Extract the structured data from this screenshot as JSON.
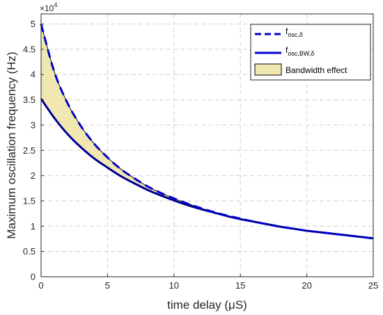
{
  "chart_data": {
    "type": "line",
    "xlabel": "time delay (μS)",
    "ylabel": "Maximum oscillation frequency (Hz)",
    "xlim": [
      0,
      25
    ],
    "ylim": [
      0,
      5.2
    ],
    "y_multiplier_label": "×10",
    "y_multiplier_exponent": "4",
    "x_ticks": [
      "0",
      "5",
      "10",
      "15",
      "20",
      "25"
    ],
    "y_ticks": [
      "0",
      "0.5",
      "1",
      "1.5",
      "2",
      "2.5",
      "3",
      "3.5",
      "4",
      "4.5",
      "5"
    ],
    "grid": true,
    "legend_position": "top-right",
    "x": [
      0,
      1,
      2,
      3,
      4,
      5,
      6,
      7,
      8,
      9,
      10,
      11,
      12,
      13,
      14,
      15,
      16,
      17,
      18,
      19,
      20,
      21,
      22,
      23,
      24,
      25
    ],
    "series": [
      {
        "name": "f",
        "sub": "osc,δ",
        "style": "dashed",
        "color": "#0000cc",
        "values": [
          5.0,
          4.05,
          3.43,
          2.98,
          2.63,
          2.36,
          2.13,
          1.95,
          1.79,
          1.66,
          1.55,
          1.45,
          1.36,
          1.28,
          1.21,
          1.15,
          1.09,
          1.04,
          0.99,
          0.95,
          0.91,
          0.88,
          0.85,
          0.82,
          0.79,
          0.76
        ]
      },
      {
        "name": "f",
        "sub": "osc,BW,δ",
        "style": "solid",
        "color": "#0000cc",
        "values": [
          3.52,
          3.14,
          2.82,
          2.56,
          2.34,
          2.16,
          1.99,
          1.85,
          1.72,
          1.61,
          1.51,
          1.42,
          1.34,
          1.27,
          1.2,
          1.14,
          1.09,
          1.04,
          0.99,
          0.95,
          0.91,
          0.88,
          0.85,
          0.82,
          0.79,
          0.76
        ]
      }
    ],
    "fill": {
      "name": "Bandwidth effect",
      "color": "#f0e8b0"
    }
  }
}
